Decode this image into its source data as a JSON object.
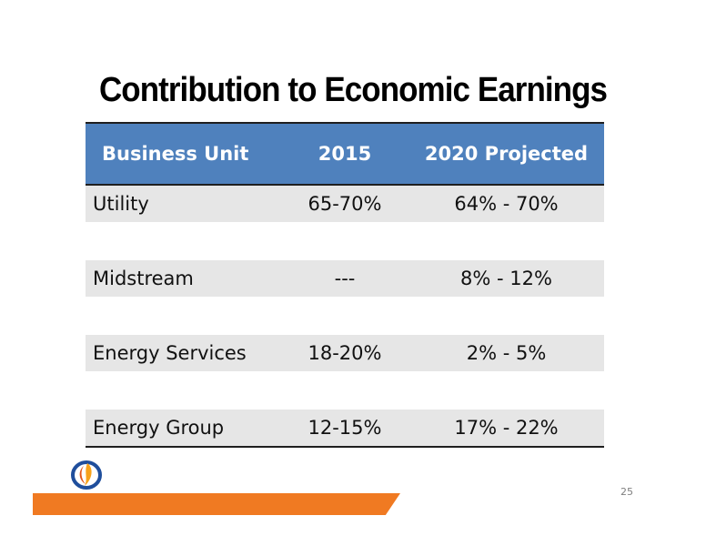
{
  "title": "Contribution to Economic Earnings",
  "table": {
    "headers": [
      "Business Unit",
      "2015",
      "2020 Projected"
    ],
    "rows": [
      {
        "unit": "Utility",
        "y2015": "65-70%",
        "y2020": "64% - 70%"
      },
      {
        "unit": "Midstream",
        "y2015": "---",
        "y2020": "8% - 12%"
      },
      {
        "unit": "Energy Services",
        "y2015": "18-20%",
        "y2020": "2% - 5%"
      },
      {
        "unit": "Energy Group",
        "y2015": "12-15%",
        "y2020": "17% - 22%"
      }
    ]
  },
  "page_number": "25",
  "colors": {
    "header_bg": "#4f81bd",
    "row_bg": "#e6e6e6",
    "accent_bar": "#f07a22",
    "logo_blue": "#1f4e9c",
    "logo_orange": "#f7a21b"
  },
  "logo": {
    "icon": "company-logo-icon"
  }
}
